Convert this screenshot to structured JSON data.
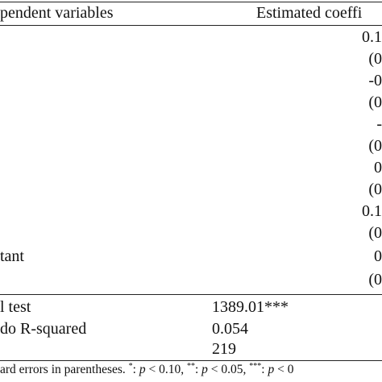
{
  "header": {
    "col1": "pendent variables",
    "col2": "Estimated coeffi"
  },
  "coef_rows": [
    {
      "label": "",
      "value": "0.1"
    },
    {
      "label": "",
      "value": "(0"
    },
    {
      "label": "",
      "value": "-0"
    },
    {
      "label": "",
      "value": "(0"
    },
    {
      "label": "",
      "value": "-"
    },
    {
      "label": "",
      "value": "(0"
    },
    {
      "label": "",
      "value": "0"
    },
    {
      "label": "",
      "value": "(0"
    },
    {
      "label": "",
      "value": "0.1"
    },
    {
      "label": "",
      "value": "(0"
    },
    {
      "label": "tant",
      "value": "0"
    },
    {
      "label": "",
      "value": "(0"
    }
  ],
  "stats": [
    {
      "label": "l test",
      "value": "1389.01***"
    },
    {
      "label": "do R-squared",
      "value": "0.054"
    },
    {
      "label": "",
      "value": "219"
    }
  ],
  "footnote": {
    "prefix": "ard errors in parentheses. ",
    "star1": "*",
    "p1_var": "p",
    "p1_rest": " < 0.10, ",
    "star2": "**",
    "p2_var": "p",
    "p2_rest": " < 0.05, ",
    "star3": "***",
    "p3_var": "p",
    "p3_rest": " < 0"
  }
}
